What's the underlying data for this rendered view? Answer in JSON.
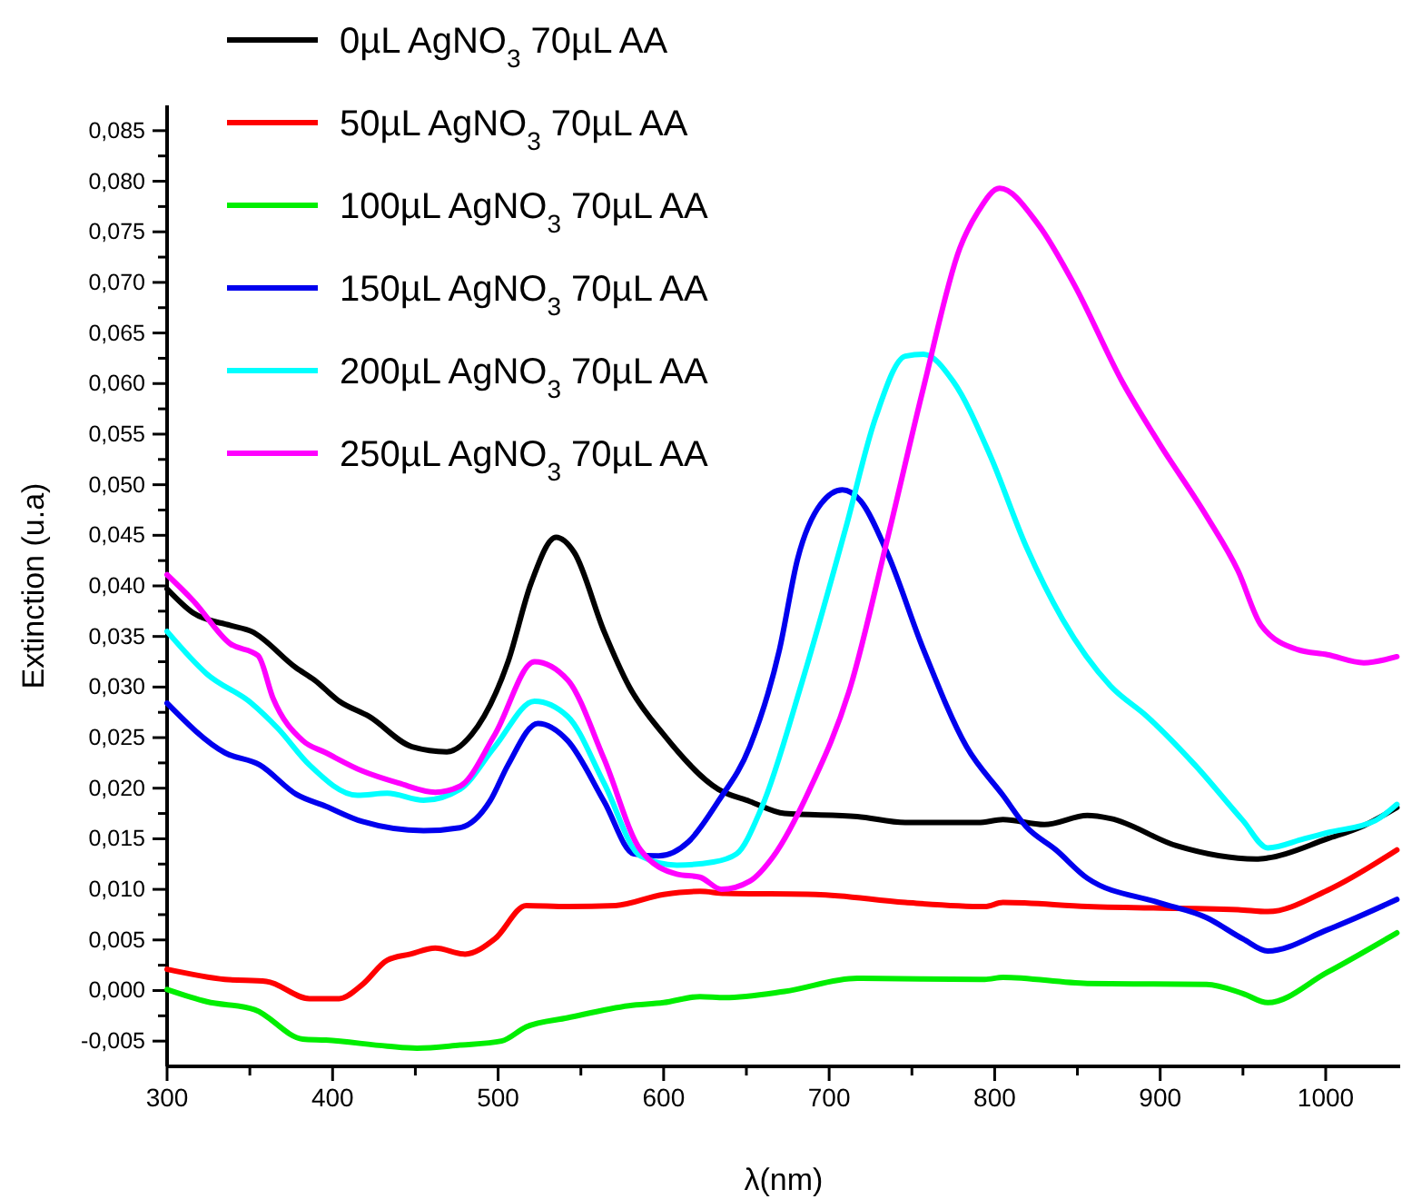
{
  "chart_data": {
    "type": "line",
    "xlabel": "λ(nm)",
    "ylabel": "Extinction (u.a)",
    "xlim": [
      300,
      1045
    ],
    "ylim": [
      -0.0075,
      0.0875
    ],
    "xticks": [
      300,
      {
        "value": 350,
        "label": null
      },
      400,
      {
        "value": 450,
        "label": null
      },
      500,
      {
        "value": 550,
        "label": null
      },
      600,
      {
        "value": 650,
        "label": null
      },
      700,
      {
        "value": 750,
        "label": null
      },
      800,
      {
        "value": 850,
        "label": null
      },
      900,
      {
        "value": 950,
        "label": null
      },
      1000
    ],
    "yticks": [
      {
        "value": -0.005,
        "label": "-0,005"
      },
      {
        "value": -0.0025,
        "label": null
      },
      {
        "value": 0,
        "label": "0,000"
      },
      {
        "value": 0.0025,
        "label": null
      },
      {
        "value": 0.005,
        "label": "0,005"
      },
      {
        "value": 0.0075,
        "label": null
      },
      {
        "value": 0.01,
        "label": "0,010"
      },
      {
        "value": 0.0125,
        "label": null
      },
      {
        "value": 0.015,
        "label": "0,015"
      },
      {
        "value": 0.0175,
        "label": null
      },
      {
        "value": 0.02,
        "label": "0,020"
      },
      {
        "value": 0.0225,
        "label": null
      },
      {
        "value": 0.025,
        "label": "0,025"
      },
      {
        "value": 0.0275,
        "label": null
      },
      {
        "value": 0.03,
        "label": "0,030"
      },
      {
        "value": 0.0325,
        "label": null
      },
      {
        "value": 0.035,
        "label": "0,035"
      },
      {
        "value": 0.0375,
        "label": null
      },
      {
        "value": 0.04,
        "label": "0,040"
      },
      {
        "value": 0.0425,
        "label": null
      },
      {
        "value": 0.045,
        "label": "0,045"
      },
      {
        "value": 0.0475,
        "label": null
      },
      {
        "value": 0.05,
        "label": "0,050"
      },
      {
        "value": 0.0525,
        "label": null
      },
      {
        "value": 0.055,
        "label": "0,055"
      },
      {
        "value": 0.0575,
        "label": null
      },
      {
        "value": 0.06,
        "label": "0,060"
      },
      {
        "value": 0.0625,
        "label": null
      },
      {
        "value": 0.065,
        "label": "0,065"
      },
      {
        "value": 0.0675,
        "label": null
      },
      {
        "value": 0.07,
        "label": "0,070"
      },
      {
        "value": 0.0725,
        "label": null
      },
      {
        "value": 0.075,
        "label": "0,075"
      },
      {
        "value": 0.0775,
        "label": null
      },
      {
        "value": 0.08,
        "label": "0,080"
      },
      {
        "value": 0.0825,
        "label": null
      },
      {
        "value": 0.085,
        "label": "0,085"
      }
    ],
    "grid": false,
    "legend": "top left",
    "marker": "none",
    "line_style": "solid",
    "series": [
      {
        "name": "0µL AgNO$_{3}$ 70µL AA",
        "color": "#000000",
        "x": [
          300,
          316,
          338,
          351,
          378,
          389,
          404,
          422,
          448,
          469,
          484,
          506,
          520,
          535,
          546,
          564,
          579,
          600,
          633,
          652,
          673,
          717,
          746,
          790,
          805,
          830,
          856,
          870,
          910,
          958,
          965,
          1001,
          1023,
          1043
        ],
        "values": [
          0.0397,
          0.0373,
          0.0361,
          0.0355,
          0.0319,
          0.0307,
          0.0286,
          0.0271,
          0.0241,
          0.0236,
          0.0253,
          0.0325,
          0.0403,
          0.0448,
          0.0433,
          0.0355,
          0.0301,
          0.0253,
          0.0199,
          0.0187,
          0.0175,
          0.0172,
          0.0166,
          0.0166,
          0.0169,
          0.0164,
          0.0173,
          0.017,
          0.0143,
          0.013,
          0.0131,
          0.015,
          0.0163,
          0.0181
        ]
      },
      {
        "name": "50µL AgNO$_{3}$ 70µL AA",
        "color": "#ff0000",
        "x": [
          300,
          335,
          360,
          386,
          404,
          418,
          433,
          447,
          462,
          480,
          498,
          517,
          542,
          571,
          600,
          622,
          637,
          692,
          746,
          794,
          805,
          856,
          947,
          965,
          1001,
          1043
        ],
        "values": [
          0.0021,
          0.0011,
          0.0009,
          -0.0008,
          -0.0008,
          0.0006,
          0.003,
          0.0036,
          0.0042,
          0.0036,
          0.0051,
          0.0084,
          0.0083,
          0.0084,
          0.0095,
          0.0098,
          0.0096,
          0.0095,
          0.0087,
          0.0083,
          0.0087,
          0.0083,
          0.008,
          0.0078,
          0.0099,
          0.0139
        ]
      },
      {
        "name": "100µL AgNO$_{3}$ 70µL AA",
        "color": "#00ee00",
        "x": [
          300,
          324,
          353,
          382,
          396,
          433,
          451,
          477,
          502,
          517,
          542,
          579,
          600,
          622,
          637,
          673,
          717,
          794,
          805,
          856,
          928,
          950,
          965,
          1001,
          1043
        ],
        "values": [
          0.0001,
          -0.0011,
          -0.0019,
          -0.0048,
          -0.0049,
          -0.0055,
          -0.0057,
          -0.0054,
          -0.005,
          -0.0036,
          -0.0027,
          -0.0015,
          -0.0012,
          -0.0006,
          -0.0007,
          -0.0001,
          0.0012,
          0.0011,
          0.0013,
          0.0007,
          0.0006,
          -0.0003,
          -0.0012,
          0.0018,
          0.0057
        ]
      },
      {
        "name": "150µL AgNO$_{3}$ 70µL AA",
        "color": "#0000ee",
        "x": [
          300,
          335,
          356,
          378,
          396,
          418,
          455,
          477,
          495,
          506,
          524,
          542,
          564,
          582,
          597,
          615,
          633,
          652,
          670,
          681,
          695,
          708,
          719,
          735,
          757,
          783,
          805,
          819,
          837,
          856,
          899,
          928,
          950,
          965,
          1001,
          1043
        ],
        "values": [
          0.0284,
          0.0235,
          0.0223,
          0.0194,
          0.0182,
          0.0167,
          0.0158,
          0.0161,
          0.0187,
          0.0223,
          0.0264,
          0.0247,
          0.0187,
          0.0135,
          0.0133,
          0.0147,
          0.0187,
          0.0241,
          0.0337,
          0.0427,
          0.0481,
          0.0495,
          0.0484,
          0.0433,
          0.0337,
          0.0241,
          0.0193,
          0.0162,
          0.0139,
          0.0111,
          0.0087,
          0.0072,
          0.0051,
          0.0039,
          0.006,
          0.009
        ]
      },
      {
        "name": "200µL AgNO$_{3}$ 70µL AA",
        "color": "#00ffff",
        "x": [
          300,
          324,
          351,
          367,
          386,
          415,
          433,
          455,
          477,
          498,
          522,
          542,
          564,
          586,
          608,
          630,
          644,
          659,
          684,
          710,
          728,
          746,
          757,
          775,
          797,
          819,
          841,
          870,
          892,
          921,
          950,
          965,
          987,
          1001,
          1030,
          1043
        ],
        "values": [
          0.0355,
          0.0313,
          0.0284,
          0.0259,
          0.0223,
          0.0193,
          0.0195,
          0.0188,
          0.0199,
          0.0241,
          0.0286,
          0.0271,
          0.0205,
          0.0133,
          0.0124,
          0.0127,
          0.0135,
          0.018,
          0.0307,
          0.0457,
          0.0566,
          0.0627,
          0.0629,
          0.0602,
          0.053,
          0.0439,
          0.0367,
          0.0301,
          0.0271,
          0.0223,
          0.0168,
          0.0141,
          0.015,
          0.0156,
          0.0168,
          0.0184
        ]
      },
      {
        "name": "250µL AgNO$_{3}$ 70µL AA",
        "color": "#ff00ff",
        "x": [
          300,
          316,
          338,
          355,
          364,
          382,
          396,
          418,
          440,
          462,
          477,
          498,
          522,
          542,
          564,
          586,
          608,
          622,
          635,
          652,
          666,
          688,
          713,
          735,
          757,
          779,
          790,
          803,
          826,
          848,
          877,
          899,
          928,
          947,
          961,
          983,
          1001,
          1023,
          1043
        ],
        "values": [
          0.0411,
          0.0385,
          0.0343,
          0.0331,
          0.0289,
          0.0247,
          0.0235,
          0.0217,
          0.0205,
          0.0196,
          0.0202,
          0.0253,
          0.0325,
          0.0307,
          0.0229,
          0.0139,
          0.0115,
          0.0112,
          0.01,
          0.0108,
          0.0132,
          0.0198,
          0.0301,
          0.0445,
          0.0596,
          0.0734,
          0.077,
          0.0793,
          0.0758,
          0.0698,
          0.0602,
          0.0542,
          0.0469,
          0.0415,
          0.0361,
          0.0337,
          0.0332,
          0.0324,
          0.033
        ]
      }
    ]
  }
}
